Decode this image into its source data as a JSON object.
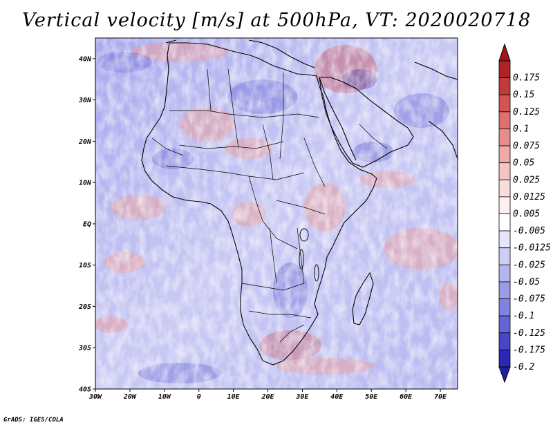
{
  "title": "Vertical velocity [m/s] at 500hPa, VT: 2020020718",
  "credit": "GrADS: IGES/COLA",
  "map": {
    "lon_range": [
      -30,
      75
    ],
    "lat_range": [
      -40,
      45
    ],
    "lat_labels": [
      {
        "text": "40N",
        "lat": 40
      },
      {
        "text": "30N",
        "lat": 30
      },
      {
        "text": "20N",
        "lat": 20
      },
      {
        "text": "10N",
        "lat": 10
      },
      {
        "text": "EQ",
        "lat": 0
      },
      {
        "text": "10S",
        "lat": -10
      },
      {
        "text": "20S",
        "lat": -20
      },
      {
        "text": "30S",
        "lat": -30
      },
      {
        "text": "40S",
        "lat": -40
      }
    ],
    "lon_labels": [
      {
        "text": "30W",
        "lon": -30
      },
      {
        "text": "20W",
        "lon": -20
      },
      {
        "text": "10W",
        "lon": -10
      },
      {
        "text": "0",
        "lon": 0
      },
      {
        "text": "10E",
        "lon": 10
      },
      {
        "text": "20E",
        "lon": 20
      },
      {
        "text": "30E",
        "lon": 30
      },
      {
        "text": "40E",
        "lon": 40
      },
      {
        "text": "50E",
        "lon": 50
      },
      {
        "text": "60E",
        "lon": 60
      },
      {
        "text": "70E",
        "lon": 70
      }
    ]
  },
  "colorbar": {
    "levels": [
      {
        "label": "0.175",
        "color": "#b22222"
      },
      {
        "label": "0.15",
        "color": "#c33a3a"
      },
      {
        "label": "0.125",
        "color": "#d45454"
      },
      {
        "label": "0.1",
        "color": "#e07070"
      },
      {
        "label": "0.075",
        "color": "#e98c8c"
      },
      {
        "label": "0.05",
        "color": "#f0a8a8"
      },
      {
        "label": "0.025",
        "color": "#f6c3c3"
      },
      {
        "label": "0.0125",
        "color": "#fadcdc"
      },
      {
        "label": "0.005",
        "color": "#fdf0f0"
      },
      {
        "label": "-0.005",
        "color": "#ffffff"
      },
      {
        "label": "-0.0125",
        "color": "#e6e6fa"
      },
      {
        "label": "-0.025",
        "color": "#cdcdf5"
      },
      {
        "label": "-0.05",
        "color": "#b4b4f0"
      },
      {
        "label": "-0.075",
        "color": "#9b9beb"
      },
      {
        "label": "-0.1",
        "color": "#8282e3"
      },
      {
        "label": "-0.125",
        "color": "#6464d8"
      },
      {
        "label": "-0.175",
        "color": "#4646c8"
      },
      {
        "label": "-0.2",
        "color": "#2828b4"
      }
    ],
    "top_arrow_color": "#a31515",
    "bottom_arrow_color": "#1e1ea0"
  }
}
